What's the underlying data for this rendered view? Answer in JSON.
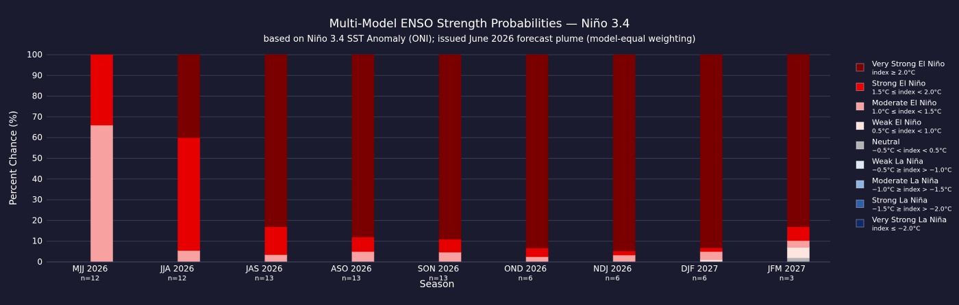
{
  "chart_data": {
    "type": "bar",
    "stacked": true,
    "title": "Multi-Model ENSO Strength Probabilities — Niño 3.4",
    "subtitle": "based on Niño 3.4 SST Anomaly (ONI); issued June 2026 forecast plume (model-equal weighting)",
    "xlabel": "Season",
    "ylabel": "Percent Chance (%)",
    "ylim": [
      0,
      100
    ],
    "yticks": [
      0,
      10,
      20,
      30,
      40,
      50,
      60,
      70,
      80,
      90,
      100
    ],
    "grid": true,
    "legend_position": "right",
    "categories": [
      "MJJ 2026",
      "JJA 2026",
      "JAS 2026",
      "ASO 2026",
      "SON 2026",
      "OND 2026",
      "NDJ 2026",
      "DJF 2027",
      "JFM 2027"
    ],
    "category_counts": [
      "n=12",
      "n=12",
      "n=13",
      "n=13",
      "n=13",
      "n=6",
      "n=6",
      "n=6",
      "n=3"
    ],
    "series": [
      {
        "name": "Very Strong La Niña",
        "range": "index ≤ −2.0°C",
        "color": "#0d2a66",
        "values": [
          0,
          0,
          0,
          0,
          0,
          0,
          0,
          0,
          0
        ]
      },
      {
        "name": "Strong La Niña",
        "range": "−1.5°C ≥ index > −2.0°C",
        "color": "#2f5fa8",
        "values": [
          0,
          0,
          0,
          0,
          0,
          0,
          0,
          0,
          0
        ]
      },
      {
        "name": "Moderate La Niña",
        "range": "−1.0°C ≥ index > −1.5°C",
        "color": "#8fb4e0",
        "values": [
          0,
          0,
          0,
          0,
          0,
          0,
          0,
          0,
          0
        ]
      },
      {
        "name": "Weak La Niña",
        "range": "−0.5°C ≥ index > −1.0°C",
        "color": "#deebf7",
        "values": [
          0,
          0,
          0,
          0,
          0,
          0,
          0,
          0,
          0
        ]
      },
      {
        "name": "Neutral",
        "range": "−0.5°C < index < 0.5°C",
        "color": "#b3b3b3",
        "values": [
          0,
          0,
          0,
          0,
          0,
          0,
          0,
          0,
          2
        ]
      },
      {
        "name": "Weak El Niño",
        "range": "0.5°C ≤ index < 1.0°C",
        "color": "#ffe5e0",
        "values": [
          0,
          0,
          0,
          0,
          0,
          0,
          0,
          1,
          5
        ]
      },
      {
        "name": "Moderate El Niño",
        "range": "1.0°C ≤ index < 1.5°C",
        "color": "#f7a1a1",
        "values": [
          66,
          5.5,
          3.5,
          5,
          4.7,
          2.5,
          3.3,
          4,
          3.3
        ]
      },
      {
        "name": "Strong El Niño",
        "range": "1.5°C ≤ index < 2.0°C",
        "color": "#e60000",
        "values": [
          34,
          54.5,
          13.5,
          7,
          6.3,
          4.2,
          2,
          1.8,
          6.7
        ]
      },
      {
        "name": "Very Strong El Niño",
        "range": "index ≥ 2.0°C",
        "color": "#7a0000",
        "values": [
          0,
          40,
          83,
          88,
          89,
          93.3,
          94.7,
          93.2,
          83.2
        ]
      }
    ],
    "legend_order": [
      "Very Strong El Niño",
      "Strong El Niño",
      "Moderate El Niño",
      "Weak El Niño",
      "Neutral",
      "Weak La Niña",
      "Moderate La Niña",
      "Strong La Niña",
      "Very Strong La Niña"
    ],
    "colors": {
      "background": "#1a1b2e",
      "grid": "#3a3c55",
      "text": "#ffffff"
    }
  }
}
